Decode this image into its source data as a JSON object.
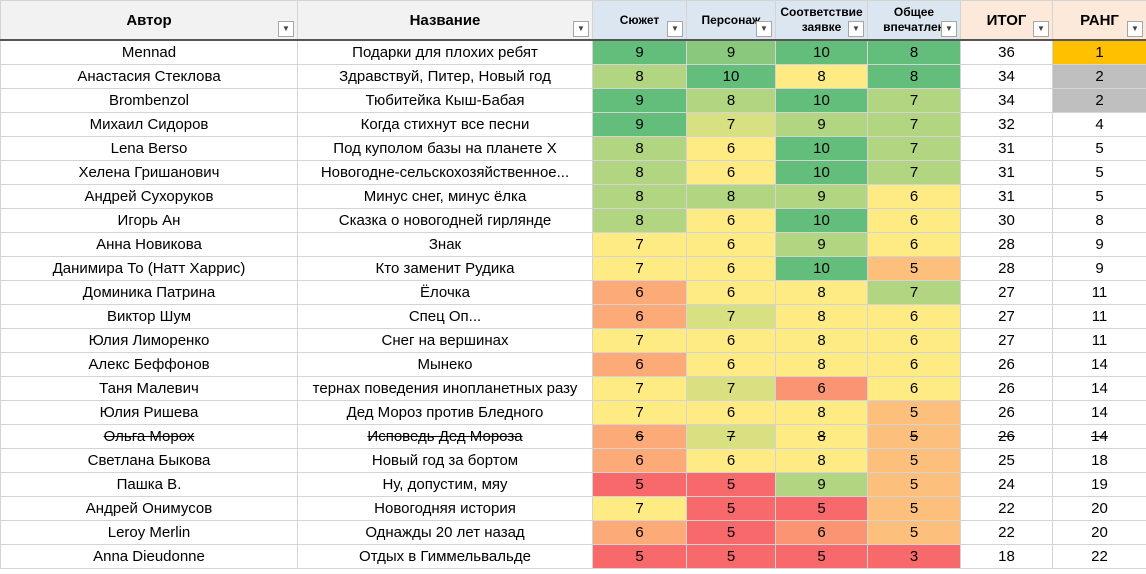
{
  "header": [
    "Автор",
    "Название",
    "Сюжет",
    "Персонаж",
    "Соответствие заявке",
    "Общее впечатлен",
    "ИТОГ",
    "РАНГ"
  ],
  "rank_colors": [
    {
      "rank": 1,
      "color": "#ffc000"
    },
    {
      "rank": 2,
      "color": "#bfbfbf"
    }
  ],
  "rows": [
    {
      "cells": [
        "Mennad",
        "Подарки для плохих ребят",
        9,
        9,
        10,
        8,
        36,
        1
      ]
    },
    {
      "cells": [
        "Анастасия Стеклова",
        "Здравствуй, Питер, Новый год",
        8,
        10,
        8,
        8,
        34,
        2
      ]
    },
    {
      "cells": [
        "Brombenzol",
        "Тюбитейка Кыш-Бабая",
        9,
        8,
        10,
        7,
        34,
        2
      ]
    },
    {
      "cells": [
        "Михаил Сидоров",
        "Когда стихнут все песни",
        9,
        7,
        9,
        7,
        32,
        4
      ]
    },
    {
      "cells": [
        "Lena Berso",
        "Под куполом базы на планете Х",
        8,
        6,
        10,
        7,
        31,
        5
      ]
    },
    {
      "cells": [
        "Хелена Гришанович",
        "Новогодне-сельскохозяйственное...",
        8,
        6,
        10,
        7,
        31,
        5
      ]
    },
    {
      "cells": [
        "Андрей Сухоруков",
        "Минус снег, минус ёлка",
        8,
        8,
        9,
        6,
        31,
        5
      ]
    },
    {
      "cells": [
        "Игорь Ан",
        "Сказка о новогодней гирлянде",
        8,
        6,
        10,
        6,
        30,
        8
      ]
    },
    {
      "cells": [
        "Анна Новикова",
        "Знак",
        7,
        6,
        9,
        6,
        28,
        9
      ]
    },
    {
      "cells": [
        "Данимира То (Натт Харрис)",
        "Кто заменит Рудика",
        7,
        6,
        10,
        5,
        28,
        9
      ]
    },
    {
      "cells": [
        "Доминика Патрина",
        "Ёлочка",
        6,
        6,
        8,
        7,
        27,
        11
      ]
    },
    {
      "cells": [
        "Виктор Шум",
        "Спец Оп...",
        6,
        7,
        8,
        6,
        27,
        11
      ]
    },
    {
      "cells": [
        "Юлия Лиморенко",
        "Снег на вершинах",
        7,
        6,
        8,
        6,
        27,
        11
      ]
    },
    {
      "cells": [
        "Алекс Беффонов",
        "Мынеко",
        6,
        6,
        8,
        6,
        26,
        14
      ]
    },
    {
      "cells": [
        "Таня Малевич",
        "тернах поведения инопланетных разу",
        7,
        7,
        6,
        6,
        26,
        14
      ]
    },
    {
      "cells": [
        "Юлия Ришева",
        "Дед Мороз против Бледного",
        7,
        6,
        8,
        5,
        26,
        14
      ]
    },
    {
      "cells": [
        "Ольга Морох",
        "Исповедь Дед Мороза",
        6,
        7,
        8,
        5,
        26,
        14
      ],
      "strikethrough": true
    },
    {
      "cells": [
        "Светлана Быкова",
        "Новый год за бортом",
        6,
        6,
        8,
        5,
        25,
        18
      ]
    },
    {
      "cells": [
        "Пашка В.",
        "Ну, допустим, мяу",
        5,
        5,
        9,
        5,
        24,
        19
      ]
    },
    {
      "cells": [
        "Андрей Онимусов",
        "Новогодняя история",
        7,
        5,
        5,
        5,
        22,
        20
      ]
    },
    {
      "cells": [
        "Leroy Merlin",
        "Однажды 20 лет назад",
        6,
        5,
        6,
        5,
        22,
        20
      ]
    },
    {
      "cells": [
        "Anna Dieudonne",
        "Отдых в Гиммельвальде",
        5,
        5,
        5,
        3,
        18,
        22
      ]
    }
  ]
}
